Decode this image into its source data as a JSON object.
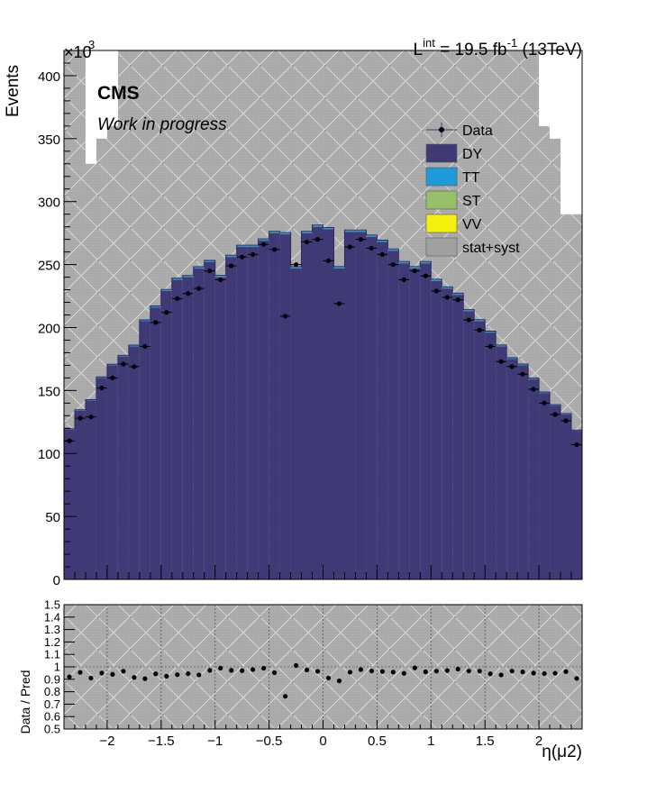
{
  "chart_data": {
    "type": "bar",
    "stacked": true,
    "x_unit": "eta",
    "header": {
      "lumi_prefix": "L",
      "lumi_superscript": "int",
      "lumi_value": " = 19.5 fb",
      "lumi_unit_exp": "-1",
      "energy": " (13TeV)"
    },
    "exponent_base": "×10",
    "exponent_power": "3",
    "cms_label": "CMS",
    "subtitle": "Work in progress",
    "ylabel": "Events",
    "ratio_ylabel": "Data / Pred",
    "xlabel": "η(μ2)",
    "xlim": [
      -2.4,
      2.4
    ],
    "ylim": [
      0,
      420000
    ],
    "ratio_ylim": [
      0.5,
      1.5
    ],
    "grid": "ratio-panel-only",
    "legend_position": "top-right",
    "y_ticks": [
      0,
      50,
      100,
      150,
      200,
      250,
      300,
      350,
      400
    ],
    "ratio_y_ticks": [
      0.5,
      0.6,
      0.7,
      0.8,
      0.9,
      1,
      1.1,
      1.2,
      1.3,
      1.4,
      1.5
    ],
    "x_ticks": [
      -2,
      -1.5,
      -1,
      -0.5,
      0,
      0.5,
      1,
      1.5,
      2
    ],
    "x_tick_labels": [
      "−2",
      "−1.5",
      "−1",
      "−0.5",
      "0",
      "0.5",
      "1",
      "1.5",
      "2"
    ],
    "bin_edges": [
      -2.4,
      -2.3,
      -2.2,
      -2.1,
      -2.0,
      -1.9,
      -1.8,
      -1.7,
      -1.6,
      -1.5,
      -1.4,
      -1.3,
      -1.2,
      -1.1,
      -1.0,
      -0.9,
      -0.8,
      -0.7,
      -0.6,
      -0.5,
      -0.4,
      -0.3,
      -0.2,
      -0.1,
      0.0,
      0.1,
      0.2,
      0.3,
      0.4,
      0.5,
      0.6,
      0.7,
      0.8,
      0.9,
      1.0,
      1.1,
      1.2,
      1.3,
      1.4,
      1.5,
      1.6,
      1.7,
      1.8,
      1.9,
      2.0,
      2.1,
      2.2,
      2.3,
      2.4
    ],
    "legend": [
      {
        "label": "Data",
        "kind": "marker",
        "color": "#000000"
      },
      {
        "label": "DY",
        "kind": "fill",
        "color": "#3f3a76"
      },
      {
        "label": "TT",
        "kind": "fill",
        "color": "#1d9ad8"
      },
      {
        "label": "ST",
        "kind": "fill",
        "color": "#97c06a"
      },
      {
        "label": "VV",
        "kind": "fill",
        "color": "#f7f00e"
      },
      {
        "label": "stat+syst",
        "kind": "hatch",
        "color": "#a8a8a8"
      }
    ],
    "series": [
      {
        "name": "DY",
        "color": "#3f3a76",
        "values": [
          119000,
          134000,
          142000,
          160000,
          170000,
          177000,
          185000,
          205000,
          216000,
          229000,
          238000,
          240000,
          247000,
          252000,
          240000,
          256000,
          264000,
          264000,
          269000,
          275000,
          274000,
          247000,
          275000,
          280000,
          278000,
          247000,
          276000,
          276000,
          272000,
          268000,
          261000,
          251000,
          247000,
          251000,
          237000,
          231000,
          226000,
          213000,
          205000,
          196000,
          185000,
          175000,
          170000,
          159000,
          148000,
          138000,
          131000,
          118000
        ]
      },
      {
        "name": "TT",
        "color": "#1d9ad8",
        "values": [
          400,
          450,
          500,
          550,
          600,
          650,
          700,
          750,
          800,
          850,
          900,
          900,
          950,
          950,
          1000,
          1000,
          1000,
          1000,
          1000,
          1000,
          1000,
          1000,
          1000,
          1000,
          1000,
          1000,
          1000,
          1000,
          1000,
          1000,
          1000,
          1000,
          1000,
          1000,
          1000,
          950,
          950,
          900,
          900,
          850,
          800,
          750,
          700,
          650,
          600,
          550,
          500,
          400
        ]
      },
      {
        "name": "ST",
        "color": "#97c06a",
        "values": [
          50,
          50,
          60,
          60,
          70,
          70,
          80,
          80,
          90,
          90,
          100,
          100,
          100,
          100,
          100,
          100,
          100,
          100,
          100,
          100,
          100,
          100,
          100,
          100,
          100,
          100,
          100,
          100,
          100,
          100,
          100,
          100,
          100,
          100,
          100,
          100,
          100,
          100,
          100,
          90,
          90,
          80,
          80,
          70,
          70,
          60,
          60,
          50
        ]
      },
      {
        "name": "VV",
        "color": "#f7f00e",
        "values": [
          150,
          150,
          160,
          180,
          190,
          200,
          210,
          230,
          240,
          250,
          260,
          270,
          270,
          280,
          270,
          280,
          290,
          290,
          300,
          300,
          300,
          270,
          300,
          300,
          300,
          270,
          300,
          300,
          300,
          290,
          290,
          280,
          270,
          280,
          260,
          250,
          250,
          240,
          230,
          220,
          210,
          200,
          190,
          180,
          160,
          150,
          150,
          150
        ]
      }
    ],
    "uncertainty_band": {
      "name": "stat+syst",
      "upper": [
        420000,
        420000,
        330000,
        350000,
        360000,
        420000,
        420000,
        420000,
        420000,
        420000,
        420000,
        420000,
        420000,
        420000,
        420000,
        420000,
        420000,
        420000,
        420000,
        420000,
        420000,
        420000,
        420000,
        420000,
        420000,
        420000,
        420000,
        420000,
        420000,
        420000,
        420000,
        420000,
        420000,
        420000,
        420000,
        420000,
        420000,
        420000,
        420000,
        420000,
        420000,
        420000,
        420000,
        420000,
        360000,
        350000,
        290000,
        290000
      ]
    },
    "data": {
      "name": "Data",
      "values": [
        110000,
        128000,
        129000,
        152000,
        160000,
        171000,
        169000,
        185000,
        204000,
        212000,
        223000,
        227000,
        231000,
        245000,
        238000,
        249000,
        256000,
        258000,
        266000,
        262000,
        209000,
        250000,
        268000,
        270000,
        253000,
        219000,
        264000,
        270000,
        263000,
        258000,
        250000,
        238000,
        245000,
        241000,
        229000,
        224000,
        222000,
        206000,
        198000,
        185000,
        173000,
        169000,
        163000,
        151000,
        140000,
        131000,
        126000,
        107000
      ]
    },
    "ratio": {
      "name": "Data / Pred",
      "values": [
        0.92,
        0.955,
        0.91,
        0.95,
        0.94,
        0.965,
        0.915,
        0.905,
        0.944,
        0.925,
        0.937,
        0.945,
        0.935,
        0.972,
        0.99,
        0.972,
        0.969,
        0.978,
        0.989,
        0.953,
        0.763,
        1.011,
        0.975,
        0.964,
        0.91,
        0.887,
        0.957,
        0.978,
        0.967,
        0.963,
        0.958,
        0.948,
        0.992,
        0.96,
        0.966,
        0.97,
        0.982,
        0.967,
        0.966,
        0.944,
        0.935,
        0.966,
        0.959,
        0.95,
        0.946,
        0.949,
        0.962,
        0.907
      ]
    }
  }
}
